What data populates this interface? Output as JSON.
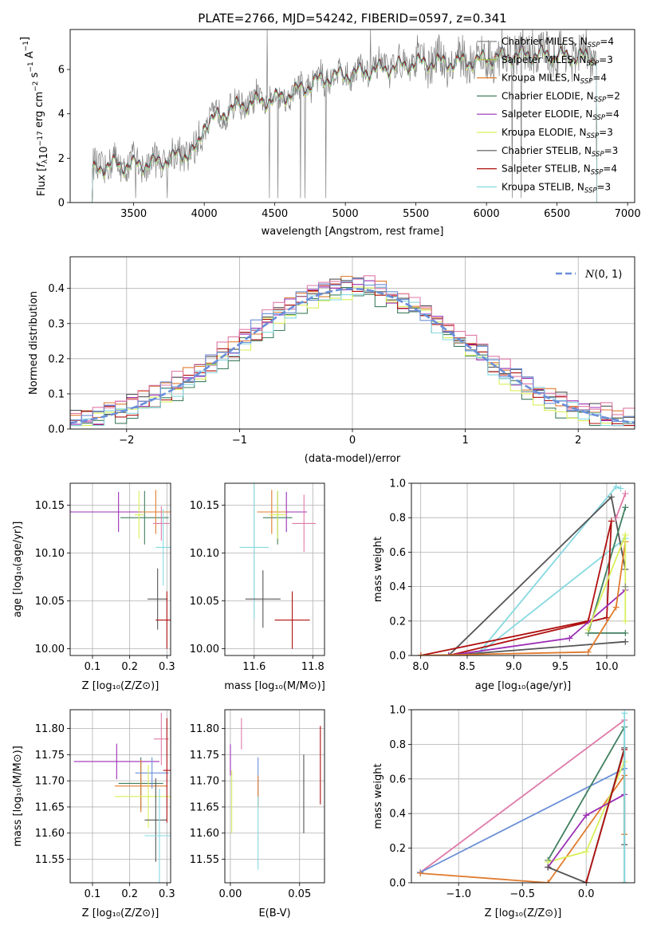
{
  "figure": {
    "title": "PLATE=2766, MJD=54242, FIBERID=0597, z=0.341"
  },
  "colors": {
    "Chabrier MILES": "#888888",
    "Salpeter MILES": "#a8c23a",
    "Kroupa MILES": "#e07b2e",
    "Chabrier ELODIE": "#3f7f5f",
    "Salpeter ELODIE": "#9b2fb5",
    "Kroupa ELODIE": "#d9ef5a",
    "Chabrier STELIB": "#555555",
    "Salpeter STELIB": "#b01010",
    "Kroupa STELIB": "#86d9e0",
    "pink": "#e07aa8",
    "blue": "#6a8fd8",
    "data": "#808080",
    "grid": "#b0b0b0"
  },
  "chart_data": [
    {
      "id": "spectrum",
      "type": "line",
      "title": "PLATE=2766, MJD=54242, FIBERID=0597, z=0.341",
      "xlabel": "wavelength [Angstrom, rest frame]",
      "ylabel": "Flux [f_λ 10^-17 erg cm^-2 s^-1 A^-1]",
      "xlim": [
        3050,
        7050
      ],
      "ylim": [
        0,
        7.8
      ],
      "xticks": [
        3500,
        4000,
        4500,
        5000,
        5500,
        6000,
        6500,
        7000
      ],
      "yticks": [
        0,
        2,
        4,
        6
      ],
      "grid": false,
      "legend_position": "right",
      "legend": [
        {
          "base": "Chabrier MILES, N",
          "sub": "SSP",
          "tail": "=4",
          "color": "#888888"
        },
        {
          "base": "Salpeter MILES, N",
          "sub": "SSP",
          "tail": "=3",
          "color": "#a8c23a"
        },
        {
          "base": "Kroupa MILES, N",
          "sub": "SSP",
          "tail": "=4",
          "color": "#e07b2e"
        },
        {
          "base": "Chabrier ELODIE, N",
          "sub": "SSP",
          "tail": "=2",
          "color": "#3f7f5f"
        },
        {
          "base": "Salpeter ELODIE, N",
          "sub": "SSP",
          "tail": "=4",
          "color": "#9b2fb5"
        },
        {
          "base": "Kroupa ELODIE, N",
          "sub": "SSP",
          "tail": "=3",
          "color": "#d9ef5a"
        },
        {
          "base": "Chabrier STELIB, N",
          "sub": "SSP",
          "tail": "=3",
          "color": "#555555"
        },
        {
          "base": "Salpeter STELIB, N",
          "sub": "SSP",
          "tail": "=4",
          "color": "#b01010"
        },
        {
          "base": "Kroupa STELIB, N",
          "sub": "SSP",
          "tail": "=3",
          "color": "#86d9e0"
        }
      ],
      "continuum_knots": {
        "x": [
          3210,
          3260,
          3350,
          3450,
          3550,
          3650,
          3750,
          3850,
          3950,
          4000,
          4100,
          4200,
          4300,
          4400,
          4500,
          4600,
          4700,
          4800,
          4900,
          5000,
          5100,
          5200,
          5300,
          5400,
          5500,
          5600,
          5700,
          5800,
          5900,
          6000,
          6100,
          6200,
          6300,
          6400,
          6500,
          6600,
          6700,
          6780
        ],
        "y": [
          1.4,
          1.6,
          1.75,
          1.7,
          1.75,
          1.8,
          2.0,
          2.2,
          2.4,
          3.6,
          3.9,
          4.3,
          4.5,
          4.6,
          4.7,
          4.9,
          5.2,
          5.5,
          5.7,
          5.8,
          5.9,
          6.0,
          6.1,
          6.2,
          6.3,
          6.35,
          6.35,
          6.35,
          6.4,
          6.5,
          6.6,
          6.65,
          6.7,
          6.7,
          6.65,
          6.6,
          6.6,
          6.6
        ]
      }
    },
    {
      "id": "residuals",
      "type": "histogram",
      "xlabel": "(data-model)/error",
      "ylabel": "Normed distribution",
      "xlim": [
        -2.5,
        2.5
      ],
      "ylim": [
        0,
        0.49
      ],
      "xticks": [
        -2,
        -1,
        0,
        1,
        2
      ],
      "yticks": [
        0.0,
        0.1,
        0.2,
        0.3,
        0.4
      ],
      "grid": true,
      "legend_position": "top-right",
      "legend_label": "N(0,1)",
      "gaussian": {
        "mu": 0,
        "sigma": 1,
        "style": "dashed",
        "color": "#6a8fd8"
      },
      "bin_width": 0.1,
      "series": [
        {
          "color": "#e07b2e",
          "offset": 0.012
        },
        {
          "color": "#3f7f5f",
          "offset": -0.018
        },
        {
          "color": "#9b2fb5",
          "offset": 0.006
        },
        {
          "color": "#d9ef5a",
          "offset": -0.01
        },
        {
          "color": "#555555",
          "offset": 0.015
        },
        {
          "color": "#b01010",
          "offset": 0.0
        },
        {
          "color": "#86d9e0",
          "offset": -0.006
        },
        {
          "color": "#e07aa8",
          "offset": 0.02
        },
        {
          "color": "#6a8fd8",
          "offset": 0.01
        }
      ]
    },
    {
      "id": "age_vs_Z",
      "type": "errorbar",
      "xlabel": "Z [log10(Z/Z⊙)]",
      "ylabel": "age [log10(age/yr)]",
      "xlim": [
        0.04,
        0.31
      ],
      "ylim": [
        9.993,
        10.173
      ],
      "xticks": [
        0.1,
        0.2,
        0.3
      ],
      "yticks": [
        10.0,
        10.05,
        10.1,
        10.15
      ],
      "grid": true,
      "points": [
        {
          "x": 0.17,
          "y": 10.143,
          "xerr": 0.13,
          "yerr": 0.021,
          "color": "#9b2fb5"
        },
        {
          "x": 0.24,
          "y": 10.137,
          "xerr": 0.065,
          "yerr": 0.028,
          "color": "#3f7f5f"
        },
        {
          "x": 0.27,
          "y": 10.143,
          "xerr": 0.04,
          "yerr": 0.023,
          "color": "#e07b2e"
        },
        {
          "x": 0.225,
          "y": 10.14,
          "xerr": 0.012,
          "yerr": 0.025,
          "color": "#d9ef5a"
        },
        {
          "x": 0.285,
          "y": 10.131,
          "xerr": 0.022,
          "yerr": 0.018,
          "color": "#e07aa8"
        },
        {
          "x": 0.29,
          "y": 10.106,
          "xerr": 0.02,
          "yerr": 0.04,
          "color": "#86d9e0"
        },
        {
          "x": 0.275,
          "y": 10.052,
          "xerr": 0.027,
          "yerr": 0.032,
          "color": "#555555"
        },
        {
          "x": 0.3,
          "y": 10.03,
          "xerr": 0.03,
          "yerr": 0.03,
          "color": "#b01010"
        }
      ]
    },
    {
      "id": "age_vs_mass",
      "type": "errorbar",
      "xlabel": "mass [log10(M/M⊙)]",
      "ylabel": "",
      "xlim": [
        11.5,
        11.84
      ],
      "ylim": [
        9.993,
        10.173
      ],
      "xticks": [
        11.6,
        11.8
      ],
      "yticks": [
        10.0,
        10.05,
        10.1,
        10.15
      ],
      "grid": true,
      "points": [
        {
          "x": 11.71,
          "y": 10.143,
          "xerr": 0.07,
          "yerr": 0.021,
          "color": "#9b2fb5"
        },
        {
          "x": 11.68,
          "y": 10.137,
          "xerr": 0.05,
          "yerr": 0.028,
          "color": "#3f7f5f"
        },
        {
          "x": 11.66,
          "y": 10.143,
          "xerr": 0.05,
          "yerr": 0.023,
          "color": "#e07b2e"
        },
        {
          "x": 11.68,
          "y": 10.14,
          "xerr": 0.03,
          "yerr": 0.025,
          "color": "#d9ef5a"
        },
        {
          "x": 11.77,
          "y": 10.131,
          "xerr": 0.04,
          "yerr": 0.03,
          "color": "#e07aa8"
        },
        {
          "x": 11.6,
          "y": 10.106,
          "xerr": 0.05,
          "yerr": 0.075,
          "color": "#86d9e0"
        },
        {
          "x": 11.63,
          "y": 10.052,
          "xerr": 0.06,
          "yerr": 0.03,
          "color": "#555555"
        },
        {
          "x": 11.73,
          "y": 10.03,
          "xerr": 0.06,
          "yerr": 0.03,
          "color": "#b01010"
        }
      ]
    },
    {
      "id": "mass_weight_vs_age",
      "type": "line",
      "xlabel": "age [log10(age/yr)]",
      "ylabel": "mass weight",
      "xlim": [
        7.9,
        10.3
      ],
      "ylim": [
        0,
        1.0
      ],
      "xticks": [
        8.0,
        8.5,
        9.0,
        9.5,
        10.0
      ],
      "yticks": [
        0.0,
        0.2,
        0.4,
        0.6,
        0.8,
        1.0
      ],
      "grid": true,
      "series": [
        {
          "color": "#86d9e0",
          "x": [
            10.2,
            8.6,
            10.1,
            10.15
          ],
          "y": [
            0.68,
            0.0,
            0.98,
            0.97
          ]
        },
        {
          "color": "#555555",
          "x": [
            10.2,
            8.3,
            10.05,
            10.2
          ],
          "y": [
            0.08,
            0.0,
            0.92,
            0.5
          ]
        },
        {
          "color": "#3f7f5f",
          "x": [
            10.2,
            9.8,
            10.2
          ],
          "y": [
            0.13,
            0.13,
            0.86
          ]
        },
        {
          "color": "#b01010",
          "x": [
            8.0,
            9.8,
            10.05,
            10.0,
            8.3,
            8.0
          ],
          "y": [
            0.0,
            0.2,
            0.78,
            0.22,
            0.0,
            0.0
          ]
        },
        {
          "color": "#9b2fb5",
          "x": [
            8.3,
            9.6,
            10.2
          ],
          "y": [
            0.0,
            0.1,
            0.38
          ]
        },
        {
          "color": "#e07b2e",
          "x": [
            8.0,
            9.8,
            10.1,
            10.2
          ],
          "y": [
            0.0,
            0.02,
            0.28,
            0.66
          ]
        },
        {
          "color": "#d9ef5a",
          "x": [
            9.8,
            10.2,
            10.2
          ],
          "y": [
            0.15,
            0.7,
            0.2
          ]
        },
        {
          "color": "#e07aa8",
          "x": [
            10.1,
            10.2
          ],
          "y": [
            0.8,
            0.94
          ]
        },
        {
          "color": "#888888",
          "x": [
            10.2
          ],
          "y": [
            0.4
          ]
        }
      ]
    },
    {
      "id": "mass_vs_Z",
      "type": "errorbar",
      "xlabel": "Z [log10(Z/Z⊙)]",
      "ylabel": "mass [log10(M/M⊙)]",
      "xlim": [
        0.04,
        0.31
      ],
      "ylim": [
        11.505,
        11.836
      ],
      "xticks": [
        0.1,
        0.2,
        0.3
      ],
      "yticks": [
        11.55,
        11.6,
        11.65,
        11.7,
        11.75,
        11.8
      ],
      "grid": true,
      "points": [
        {
          "x": 0.165,
          "y": 11.737,
          "xerr": 0.115,
          "yerr": 0.034,
          "color": "#9b2fb5"
        },
        {
          "x": 0.23,
          "y": 11.695,
          "xerr": 0.06,
          "yerr": 0.05,
          "color": "#3f7f5f"
        },
        {
          "x": 0.23,
          "y": 11.69,
          "xerr": 0.07,
          "yerr": 0.05,
          "color": "#e07b2e"
        },
        {
          "x": 0.26,
          "y": 11.715,
          "xerr": 0.045,
          "yerr": 0.03,
          "color": "#6a8fd8"
        },
        {
          "x": 0.25,
          "y": 11.67,
          "xerr": 0.09,
          "yerr": 0.06,
          "color": "#d9ef5a"
        },
        {
          "x": 0.285,
          "y": 11.78,
          "xerr": 0.02,
          "yerr": 0.05,
          "color": "#e07aa8"
        },
        {
          "x": 0.27,
          "y": 11.625,
          "xerr": 0.03,
          "yerr": 0.08,
          "color": "#555555"
        },
        {
          "x": 0.3,
          "y": 11.72,
          "xerr": 0.01,
          "yerr": 0.1,
          "color": "#b01010"
        },
        {
          "x": 0.28,
          "y": 11.595,
          "xerr": 0.04,
          "yerr": 0.09,
          "color": "#86d9e0"
        }
      ]
    },
    {
      "id": "mass_vs_EBV",
      "type": "errorbar",
      "xlabel": "E(B-V)",
      "ylabel": "",
      "xlim": [
        -0.004,
        0.068
      ],
      "ylim": [
        11.505,
        11.836
      ],
      "xticks": [
        0.0,
        0.05
      ],
      "yticks": [
        11.55,
        11.6,
        11.65,
        11.7,
        11.75,
        11.8
      ],
      "grid": true,
      "points": [
        {
          "x": 0.0,
          "y": 11.74,
          "xerr": 0,
          "yerr": 0.03,
          "color": "#9b2fb5"
        },
        {
          "x": 0.001,
          "y": 11.66,
          "xerr": 0,
          "yerr": 0.06,
          "color": "#d9ef5a"
        },
        {
          "x": 0.008,
          "y": 11.79,
          "xerr": 0,
          "yerr": 0.03,
          "color": "#e07aa8"
        },
        {
          "x": 0.02,
          "y": 11.7,
          "xerr": 0,
          "yerr": 0.045,
          "color": "#6a8fd8"
        },
        {
          "x": 0.02,
          "y": 11.68,
          "xerr": 0,
          "yerr": 0.03,
          "color": "#e07b2e"
        },
        {
          "x": 0.02,
          "y": 11.6,
          "xerr": 0,
          "yerr": 0.07,
          "color": "#86d9e0"
        },
        {
          "x": 0.053,
          "y": 11.675,
          "xerr": 0,
          "yerr": 0.075,
          "color": "#555555"
        },
        {
          "x": 0.065,
          "y": 11.73,
          "xerr": 0,
          "yerr": 0.075,
          "color": "#b01010"
        }
      ]
    },
    {
      "id": "mass_weight_vs_Z",
      "type": "line",
      "xlabel": "Z [log10(Z/Z⊙)]",
      "ylabel": "mass weight",
      "xlim": [
        -1.37,
        0.38
      ],
      "ylim": [
        0,
        1.0
      ],
      "xticks": [
        -1.0,
        -0.5,
        0.0
      ],
      "yticks": [
        0.0,
        0.2,
        0.4,
        0.6,
        0.8,
        1.0
      ],
      "grid": true,
      "series": [
        {
          "color": "#e07aa8",
          "x": [
            -1.3,
            0.3
          ],
          "y": [
            0.06,
            0.94
          ]
        },
        {
          "color": "#6a8fd8",
          "x": [
            -1.3,
            0.3
          ],
          "y": [
            0.06,
            0.66
          ]
        },
        {
          "color": "#e07b2e",
          "x": [
            -1.3,
            -0.3,
            0.3,
            0.3
          ],
          "y": [
            0.055,
            0.0,
            0.62,
            0.28
          ]
        },
        {
          "color": "#3f7f5f",
          "x": [
            -0.3,
            0.3,
            0.3
          ],
          "y": [
            0.13,
            0.9,
            0.0
          ]
        },
        {
          "color": "#d9ef5a",
          "x": [
            -0.3,
            0.0,
            0.3
          ],
          "y": [
            0.12,
            0.18,
            0.7
          ]
        },
        {
          "color": "#9b2fb5",
          "x": [
            -0.3,
            0.0,
            0.3
          ],
          "y": [
            0.09,
            0.39,
            0.51
          ]
        },
        {
          "color": "#555555",
          "x": [
            -0.3,
            0.0,
            0.3,
            0.3
          ],
          "y": [
            0.09,
            0.0,
            0.78,
            0.22
          ]
        },
        {
          "color": "#b01010",
          "x": [
            0.0,
            0.3
          ],
          "y": [
            0.0,
            0.77
          ]
        },
        {
          "color": "#86d9e0",
          "x": [
            0.3,
            0.3
          ],
          "y": [
            0.0,
            0.98
          ]
        }
      ]
    }
  ]
}
